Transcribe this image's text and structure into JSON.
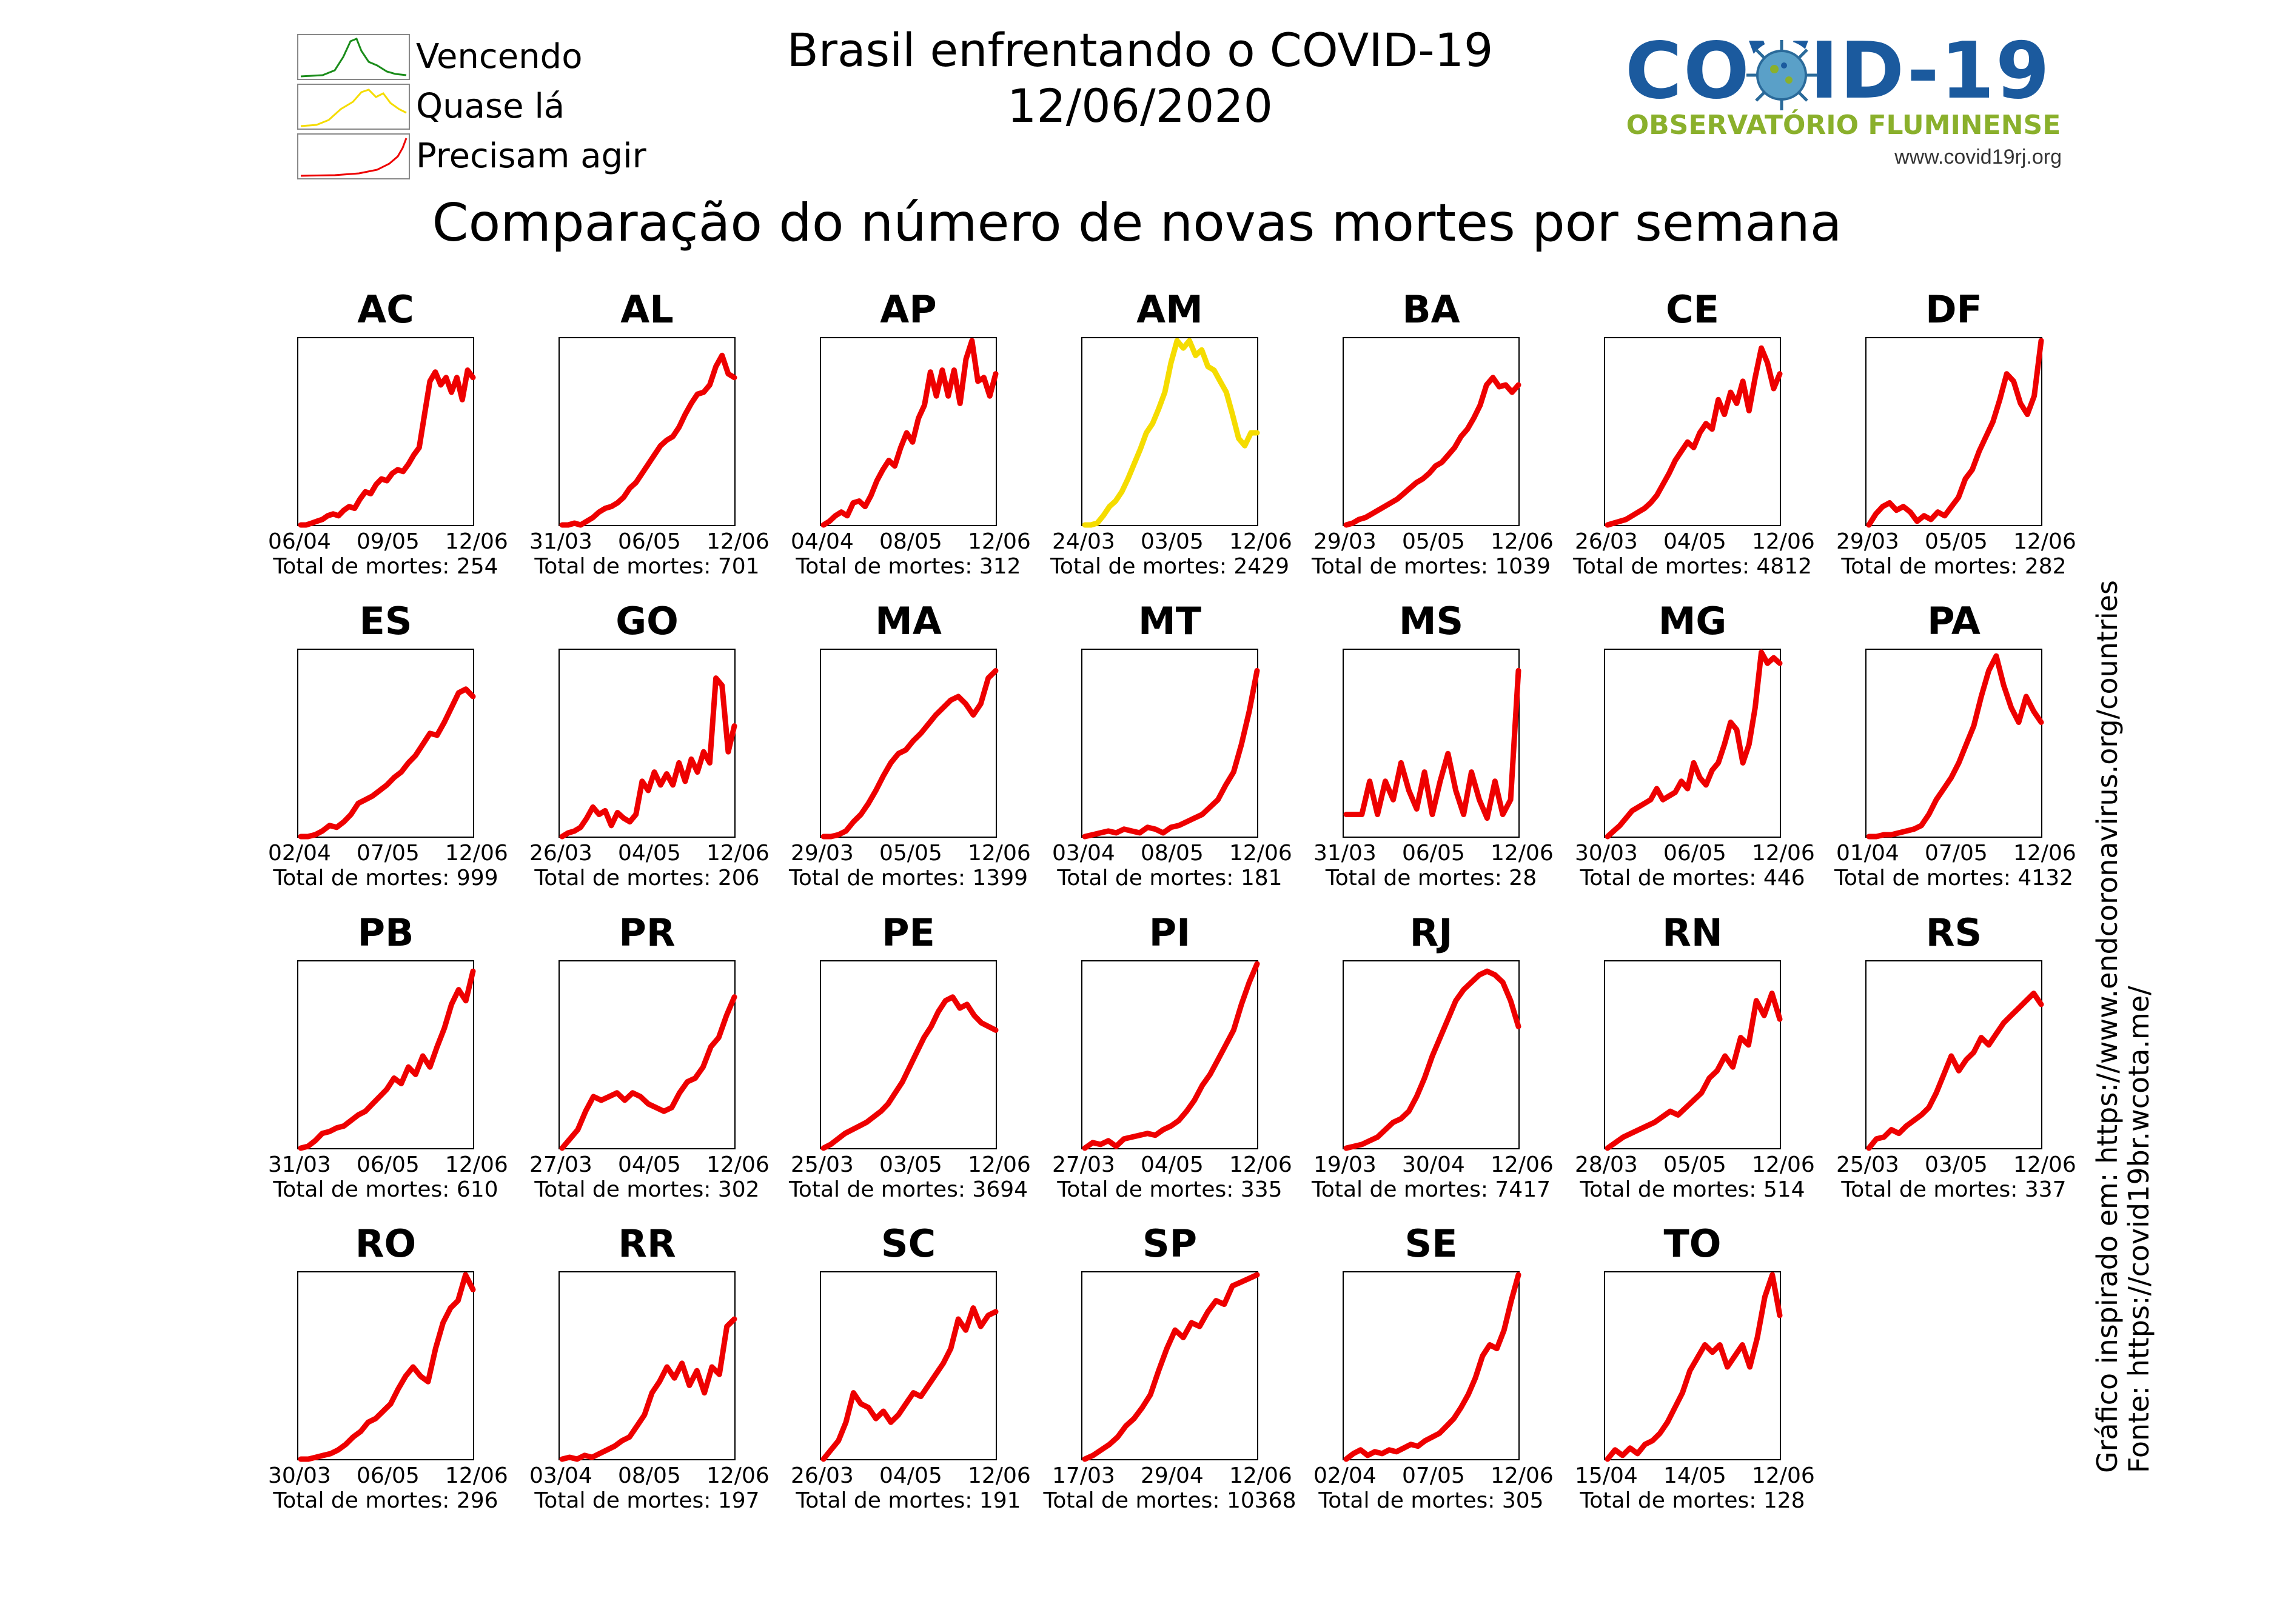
{
  "header": {
    "title_line1": "Brasil enfrentando o COVID-19",
    "title_line2": "12/06/2020",
    "subtitle": "Comparação do número de novas mortes por semana"
  },
  "legend": [
    {
      "label": "Vencendo",
      "color": "#1a8c1a"
    },
    {
      "label": "Quase lá",
      "color": "#f5dc00"
    },
    {
      "label": "Precisam agir",
      "color": "#ee0000"
    }
  ],
  "logo": {
    "title": "COVID-19",
    "subtitle": "OBSERVATÓRIO FLUMINENSE",
    "url": "www.covid19rj.org"
  },
  "source": {
    "line1": "Gráfico inspirado em: https://www.endcoronavirus.org/countries",
    "line2": "Fonte: https://covid19br.wcota.me/"
  },
  "total_prefix": "Total de mortes: ",
  "chart_data": [
    {
      "state": "AC",
      "status": "red",
      "ticks": [
        "06/04",
        "09/05",
        "12/06"
      ],
      "total": 254,
      "values": [
        0,
        0,
        0.01,
        0.02,
        0.03,
        0.05,
        0.06,
        0.05,
        0.08,
        0.1,
        0.09,
        0.14,
        0.18,
        0.17,
        0.22,
        0.25,
        0.24,
        0.28,
        0.3,
        0.29,
        0.33,
        0.38,
        0.42,
        0.6,
        0.78,
        0.83,
        0.76,
        0.8,
        0.72,
        0.8,
        0.68,
        0.84,
        0.8
      ]
    },
    {
      "state": "AL",
      "status": "red",
      "ticks": [
        "31/03",
        "06/05",
        "12/06"
      ],
      "total": 701,
      "values": [
        0,
        0,
        0.01,
        0,
        0.02,
        0.04,
        0.07,
        0.09,
        0.1,
        0.12,
        0.15,
        0.2,
        0.23,
        0.28,
        0.33,
        0.38,
        0.43,
        0.46,
        0.48,
        0.53,
        0.6,
        0.66,
        0.71,
        0.72,
        0.76,
        0.86,
        0.92,
        0.82,
        0.8
      ]
    },
    {
      "state": "AP",
      "status": "red",
      "ticks": [
        "04/04",
        "08/05",
        "12/06"
      ],
      "total": 312,
      "values": [
        0,
        0.02,
        0.05,
        0.07,
        0.05,
        0.12,
        0.13,
        0.1,
        0.16,
        0.24,
        0.3,
        0.35,
        0.32,
        0.42,
        0.5,
        0.45,
        0.58,
        0.65,
        0.83,
        0.7,
        0.84,
        0.7,
        0.84,
        0.66,
        0.9,
        1.0,
        0.78,
        0.8,
        0.7,
        0.82
      ]
    },
    {
      "state": "AM",
      "status": "yellow",
      "ticks": [
        "24/03",
        "03/05",
        "12/06"
      ],
      "total": 2429,
      "values": [
        0,
        0,
        0.01,
        0.05,
        0.1,
        0.13,
        0.18,
        0.25,
        0.33,
        0.41,
        0.5,
        0.55,
        0.63,
        0.72,
        0.88,
        1.0,
        0.96,
        1.0,
        0.92,
        0.95,
        0.86,
        0.84,
        0.78,
        0.72,
        0.6,
        0.47,
        0.43,
        0.5,
        0.5
      ]
    },
    {
      "state": "BA",
      "status": "red",
      "ticks": [
        "29/03",
        "05/05",
        "12/06"
      ],
      "total": 1039,
      "values": [
        0,
        0.01,
        0.03,
        0.04,
        0.06,
        0.08,
        0.1,
        0.12,
        0.14,
        0.17,
        0.2,
        0.23,
        0.25,
        0.28,
        0.32,
        0.34,
        0.38,
        0.42,
        0.48,
        0.52,
        0.58,
        0.65,
        0.76,
        0.8,
        0.75,
        0.76,
        0.72,
        0.76
      ]
    },
    {
      "state": "CE",
      "status": "red",
      "ticks": [
        "26/03",
        "04/05",
        "12/06"
      ],
      "total": 4812,
      "values": [
        0,
        0.01,
        0.02,
        0.03,
        0.05,
        0.07,
        0.09,
        0.12,
        0.16,
        0.22,
        0.28,
        0.35,
        0.4,
        0.45,
        0.42,
        0.5,
        0.55,
        0.52,
        0.68,
        0.6,
        0.72,
        0.66,
        0.78,
        0.62,
        0.8,
        0.96,
        0.88,
        0.74,
        0.82
      ]
    },
    {
      "state": "DF",
      "status": "red",
      "ticks": [
        "29/03",
        "05/05",
        "12/06"
      ],
      "total": 282,
      "values": [
        0,
        0.06,
        0.1,
        0.12,
        0.08,
        0.1,
        0.07,
        0.02,
        0.05,
        0.03,
        0.07,
        0.05,
        0.1,
        0.15,
        0.25,
        0.3,
        0.4,
        0.48,
        0.56,
        0.68,
        0.82,
        0.78,
        0.66,
        0.6,
        0.7,
        1.0
      ]
    },
    {
      "state": "ES",
      "status": "red",
      "ticks": [
        "02/04",
        "07/05",
        "12/06"
      ],
      "total": 999,
      "values": [
        0,
        0,
        0.01,
        0.03,
        0.06,
        0.05,
        0.08,
        0.12,
        0.18,
        0.2,
        0.22,
        0.25,
        0.28,
        0.32,
        0.35,
        0.4,
        0.44,
        0.5,
        0.56,
        0.55,
        0.62,
        0.7,
        0.78,
        0.8,
        0.76
      ]
    },
    {
      "state": "GO",
      "status": "red",
      "ticks": [
        "26/03",
        "04/05",
        "12/06"
      ],
      "total": 206,
      "values": [
        0,
        0.02,
        0.03,
        0.05,
        0.1,
        0.16,
        0.12,
        0.14,
        0.06,
        0.13,
        0.1,
        0.08,
        0.12,
        0.3,
        0.25,
        0.35,
        0.28,
        0.34,
        0.28,
        0.4,
        0.3,
        0.42,
        0.35,
        0.46,
        0.4,
        0.86,
        0.82,
        0.46,
        0.6
      ]
    },
    {
      "state": "MA",
      "status": "red",
      "ticks": [
        "29/03",
        "05/05",
        "12/06"
      ],
      "total": 1399,
      "values": [
        0,
        0,
        0.01,
        0.03,
        0.08,
        0.12,
        0.18,
        0.25,
        0.33,
        0.4,
        0.45,
        0.47,
        0.52,
        0.56,
        0.61,
        0.66,
        0.7,
        0.74,
        0.76,
        0.72,
        0.66,
        0.72,
        0.86,
        0.9
      ]
    },
    {
      "state": "MT",
      "status": "red",
      "ticks": [
        "03/04",
        "08/05",
        "12/06"
      ],
      "total": 181,
      "values": [
        0,
        0.01,
        0.02,
        0.03,
        0.02,
        0.04,
        0.03,
        0.02,
        0.05,
        0.04,
        0.02,
        0.05,
        0.06,
        0.08,
        0.1,
        0.12,
        0.16,
        0.2,
        0.28,
        0.35,
        0.5,
        0.68,
        0.9
      ]
    },
    {
      "state": "MS",
      "status": "red",
      "ticks": [
        "31/03",
        "06/05",
        "12/06"
      ],
      "total": 28,
      "values": [
        0.12,
        0.12,
        0.12,
        0.3,
        0.12,
        0.3,
        0.2,
        0.4,
        0.25,
        0.15,
        0.35,
        0.12,
        0.3,
        0.45,
        0.25,
        0.12,
        0.35,
        0.2,
        0.1,
        0.3,
        0.12,
        0.2,
        0.9
      ]
    },
    {
      "state": "MG",
      "status": "red",
      "ticks": [
        "30/03",
        "06/05",
        "12/06"
      ],
      "total": 446,
      "values": [
        0,
        0.03,
        0.06,
        0.1,
        0.14,
        0.16,
        0.18,
        0.2,
        0.26,
        0.2,
        0.22,
        0.24,
        0.3,
        0.26,
        0.4,
        0.32,
        0.28,
        0.36,
        0.4,
        0.5,
        0.62,
        0.58,
        0.4,
        0.5,
        0.7,
        1.0,
        0.94,
        0.97,
        0.94
      ]
    },
    {
      "state": "PA",
      "status": "red",
      "ticks": [
        "01/04",
        "07/05",
        "12/06"
      ],
      "total": 4132,
      "values": [
        0,
        0,
        0.01,
        0.01,
        0.02,
        0.03,
        0.04,
        0.06,
        0.12,
        0.2,
        0.26,
        0.32,
        0.4,
        0.5,
        0.6,
        0.76,
        0.9,
        0.98,
        0.82,
        0.7,
        0.62,
        0.76,
        0.68,
        0.62
      ]
    },
    {
      "state": "PB",
      "status": "red",
      "ticks": [
        "31/03",
        "06/05",
        "12/06"
      ],
      "total": 610,
      "values": [
        0,
        0.01,
        0.04,
        0.08,
        0.09,
        0.11,
        0.12,
        0.15,
        0.18,
        0.2,
        0.24,
        0.28,
        0.32,
        0.38,
        0.35,
        0.44,
        0.4,
        0.5,
        0.44,
        0.55,
        0.65,
        0.78,
        0.86,
        0.8,
        0.96
      ]
    },
    {
      "state": "PR",
      "status": "red",
      "ticks": [
        "27/03",
        "04/05",
        "12/06"
      ],
      "total": 302,
      "values": [
        0,
        0.05,
        0.1,
        0.2,
        0.28,
        0.26,
        0.28,
        0.3,
        0.26,
        0.3,
        0.28,
        0.24,
        0.22,
        0.2,
        0.22,
        0.3,
        0.36,
        0.38,
        0.44,
        0.55,
        0.6,
        0.72,
        0.82
      ]
    },
    {
      "state": "PE",
      "status": "red",
      "ticks": [
        "25/03",
        "03/05",
        "12/06"
      ],
      "total": 3694,
      "values": [
        0,
        0.02,
        0.05,
        0.08,
        0.1,
        0.12,
        0.14,
        0.17,
        0.2,
        0.24,
        0.3,
        0.36,
        0.44,
        0.52,
        0.6,
        0.66,
        0.74,
        0.8,
        0.82,
        0.76,
        0.78,
        0.72,
        0.68,
        0.66,
        0.64
      ]
    },
    {
      "state": "PI",
      "status": "red",
      "ticks": [
        "27/03",
        "04/05",
        "12/06"
      ],
      "total": 335,
      "values": [
        0,
        0.03,
        0.02,
        0.04,
        0.01,
        0.05,
        0.06,
        0.07,
        0.08,
        0.07,
        0.1,
        0.12,
        0.15,
        0.2,
        0.26,
        0.34,
        0.4,
        0.48,
        0.56,
        0.64,
        0.78,
        0.9,
        1.0
      ]
    },
    {
      "state": "RJ",
      "status": "red",
      "ticks": [
        "19/03",
        "30/04",
        "12/06"
      ],
      "total": 7417,
      "values": [
        0,
        0.01,
        0.02,
        0.04,
        0.06,
        0.1,
        0.14,
        0.16,
        0.2,
        0.28,
        0.38,
        0.5,
        0.6,
        0.7,
        0.8,
        0.86,
        0.9,
        0.94,
        0.96,
        0.94,
        0.9,
        0.8,
        0.66
      ]
    },
    {
      "state": "RN",
      "status": "red",
      "ticks": [
        "28/03",
        "05/05",
        "12/06"
      ],
      "total": 514,
      "values": [
        0,
        0.03,
        0.06,
        0.08,
        0.1,
        0.12,
        0.14,
        0.17,
        0.2,
        0.18,
        0.22,
        0.26,
        0.3,
        0.38,
        0.42,
        0.5,
        0.44,
        0.6,
        0.56,
        0.8,
        0.72,
        0.84,
        0.7
      ]
    },
    {
      "state": "RS",
      "status": "red",
      "ticks": [
        "25/03",
        "03/05",
        "12/06"
      ],
      "total": 337,
      "values": [
        0,
        0.05,
        0.06,
        0.1,
        0.08,
        0.12,
        0.15,
        0.18,
        0.22,
        0.3,
        0.4,
        0.5,
        0.42,
        0.48,
        0.52,
        0.6,
        0.56,
        0.62,
        0.68,
        0.72,
        0.76,
        0.8,
        0.84,
        0.78
      ]
    },
    {
      "state": "RO",
      "status": "red",
      "ticks": [
        "30/03",
        "06/05",
        "12/06"
      ],
      "total": 296,
      "values": [
        0,
        0,
        0.01,
        0.02,
        0.03,
        0.05,
        0.08,
        0.12,
        0.15,
        0.2,
        0.22,
        0.26,
        0.3,
        0.38,
        0.45,
        0.5,
        0.45,
        0.42,
        0.6,
        0.74,
        0.82,
        0.86,
        1.0,
        0.92
      ]
    },
    {
      "state": "RR",
      "status": "red",
      "ticks": [
        "03/04",
        "08/05",
        "12/06"
      ],
      "total": 197,
      "values": [
        0,
        0.01,
        0,
        0.02,
        0.01,
        0.03,
        0.05,
        0.07,
        0.1,
        0.12,
        0.18,
        0.24,
        0.36,
        0.42,
        0.5,
        0.44,
        0.52,
        0.4,
        0.48,
        0.36,
        0.5,
        0.46,
        0.72,
        0.76
      ]
    },
    {
      "state": "SC",
      "status": "red",
      "ticks": [
        "26/03",
        "04/05",
        "12/06"
      ],
      "total": 191,
      "values": [
        0,
        0.05,
        0.1,
        0.2,
        0.36,
        0.3,
        0.28,
        0.22,
        0.26,
        0.2,
        0.24,
        0.3,
        0.36,
        0.34,
        0.4,
        0.46,
        0.52,
        0.6,
        0.76,
        0.7,
        0.82,
        0.72,
        0.78,
        0.8
      ]
    },
    {
      "state": "SP",
      "status": "red",
      "ticks": [
        "17/03",
        "29/04",
        "12/06"
      ],
      "total": 10368,
      "values": [
        0,
        0.02,
        0.05,
        0.08,
        0.12,
        0.18,
        0.22,
        0.28,
        0.35,
        0.48,
        0.6,
        0.7,
        0.66,
        0.74,
        0.72,
        0.8,
        0.86,
        0.84,
        0.94,
        0.96,
        0.98,
        1.0
      ]
    },
    {
      "state": "SE",
      "status": "red",
      "ticks": [
        "02/04",
        "07/05",
        "12/06"
      ],
      "total": 305,
      "values": [
        0,
        0.03,
        0.05,
        0.02,
        0.04,
        0.03,
        0.05,
        0.04,
        0.06,
        0.08,
        0.07,
        0.1,
        0.12,
        0.14,
        0.18,
        0.22,
        0.28,
        0.35,
        0.44,
        0.56,
        0.62,
        0.6,
        0.7,
        0.86,
        1.0
      ]
    },
    {
      "state": "TO",
      "status": "red",
      "ticks": [
        "15/04",
        "14/05",
        "12/06"
      ],
      "total": 128,
      "values": [
        0,
        0.05,
        0.02,
        0.06,
        0.03,
        0.08,
        0.1,
        0.14,
        0.2,
        0.28,
        0.36,
        0.48,
        0.55,
        0.62,
        0.58,
        0.62,
        0.5,
        0.56,
        0.62,
        0.5,
        0.66,
        0.88,
        1.0,
        0.78
      ]
    }
  ]
}
